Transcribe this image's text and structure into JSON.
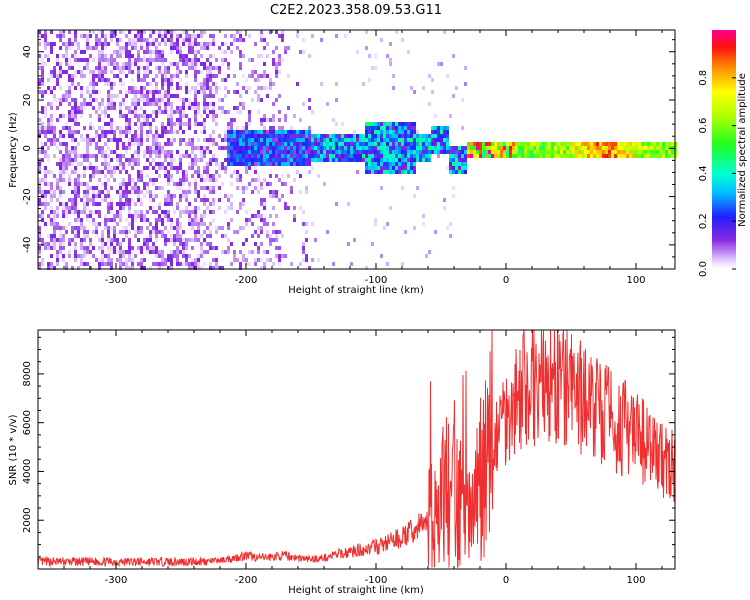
{
  "title": "C2E2.2023.358.09.53.G11",
  "chart_data": [
    {
      "type": "heatmap",
      "xlabel": "Height of straight line (km)",
      "ylabel": "Frequency (Hz)",
      "xlim": [
        -360,
        130
      ],
      "ylim": [
        -50,
        49
      ],
      "xticks": [
        -300,
        -200,
        -100,
        0,
        100
      ],
      "xtick_labels": [
        "-300",
        "-200",
        "-100",
        "0",
        "100"
      ],
      "yticks": [
        -40,
        -20,
        0,
        20,
        40
      ],
      "ytick_labels": [
        "-40",
        "-20",
        "0",
        "20",
        "40"
      ],
      "colorbar": {
        "label": "Normalized spectral amplitude",
        "range": [
          0,
          1
        ],
        "ticks": [
          0.0,
          0.2,
          0.4,
          0.6,
          0.8
        ],
        "tick_labels": [
          "0.0",
          "0.2",
          "0.4",
          "0.6",
          "0.8"
        ]
      },
      "description_regions": [
        {
          "x_range": [
            -360,
            -225
          ],
          "freq_range": [
            -50,
            49
          ],
          "level": "low scattered noise (0.0-0.2)"
        },
        {
          "x_range": [
            -225,
            -30
          ],
          "freq_range": [
            -15,
            10
          ],
          "level": "band 0.1-0.5, widening near -100"
        },
        {
          "x_range": [
            -30,
            130
          ],
          "freq_range": [
            -3,
            3
          ],
          "level": "narrow strong band 0.4-1.0, peak ~0.9 near 60-90"
        }
      ]
    },
    {
      "type": "line",
      "xlabel": "Height of straight line (km)",
      "ylabel": "SNR (10 * v/v)",
      "xlim": [
        -360,
        130
      ],
      "ylim": [
        0,
        9800
      ],
      "xticks": [
        -300,
        -200,
        -100,
        0,
        100
      ],
      "xtick_labels": [
        "-300",
        "-200",
        "-100",
        "0",
        "100"
      ],
      "yticks": [
        2000,
        4000,
        6000,
        8000
      ],
      "ytick_labels": [
        "2000",
        "4000",
        "6000",
        "8000"
      ],
      "series": [
        {
          "color": "#f03030",
          "x": [
            -360,
            -340,
            -320,
            -300,
            -280,
            -260,
            -240,
            -220,
            -210,
            -200,
            -190,
            -180,
            -170,
            -160,
            -150,
            -140,
            -130,
            -120,
            -110,
            -100,
            -90,
            -80,
            -70,
            -60,
            -50,
            -45,
            -40,
            -35,
            -30,
            -25,
            -20,
            -15,
            -10,
            -5,
            0,
            5,
            10,
            20,
            30,
            40,
            50,
            60,
            70,
            80,
            90,
            100,
            110,
            120,
            130
          ],
          "y": [
            300,
            300,
            300,
            300,
            300,
            300,
            300,
            350,
            450,
            550,
            450,
            500,
            550,
            450,
            400,
            450,
            600,
            700,
            800,
            900,
            1100,
            1300,
            1600,
            2000,
            2600,
            3200,
            3000,
            2600,
            2000,
            2300,
            3400,
            4200,
            5200,
            5900,
            6400,
            6800,
            7200,
            7600,
            7700,
            7500,
            7300,
            7000,
            6600,
            6200,
            5800,
            5400,
            5000,
            4500,
            4200
          ]
        }
      ]
    }
  ]
}
